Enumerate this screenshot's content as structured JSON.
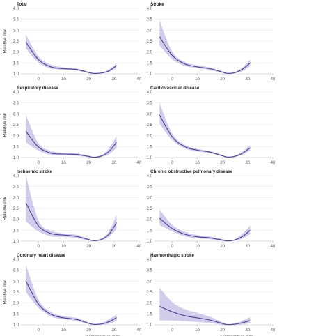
{
  "chart_data": {
    "type": "line",
    "ylabel": "Relative risk",
    "xlabel": "Temperature (°C)",
    "xlim": [
      -7,
      40
    ],
    "ylim": [
      1.0,
      4.0
    ],
    "xticks": [
      "0",
      "10",
      "20",
      "30",
      "40"
    ],
    "yticks": [
      "1.0",
      "1.5",
      "2.0",
      "2.5",
      "3.0",
      "3.5",
      "4.0"
    ],
    "grid": true,
    "line_color": "#4b3f8f",
    "band_color": "#c9c3e8",
    "panels": [
      {
        "title": "Total",
        "x": [
          -5,
          0,
          5,
          10,
          15,
          20,
          22,
          25,
          28,
          31
        ],
        "y": [
          2.45,
          1.65,
          1.32,
          1.24,
          1.2,
          1.06,
          1.02,
          1.04,
          1.14,
          1.38
        ],
        "lower": [
          2.15,
          1.52,
          1.24,
          1.19,
          1.15,
          1.03,
          1.0,
          1.02,
          1.08,
          1.27
        ],
        "upper": [
          2.8,
          1.8,
          1.41,
          1.3,
          1.25,
          1.09,
          1.04,
          1.07,
          1.2,
          1.5
        ]
      },
      {
        "title": "Stroke",
        "x": [
          -5,
          0,
          5,
          10,
          15,
          20,
          22,
          25,
          28,
          31
        ],
        "y": [
          2.7,
          1.85,
          1.46,
          1.32,
          1.24,
          1.08,
          1.02,
          1.06,
          1.22,
          1.5
        ],
        "lower": [
          2.3,
          1.67,
          1.37,
          1.26,
          1.18,
          1.04,
          1.0,
          1.03,
          1.13,
          1.35
        ],
        "upper": [
          3.45,
          2.02,
          1.55,
          1.39,
          1.3,
          1.11,
          1.05,
          1.1,
          1.3,
          1.65
        ]
      },
      {
        "title": "Respiratory disease",
        "x": [
          -5,
          0,
          5,
          10,
          15,
          20,
          22,
          25,
          28,
          31
        ],
        "y": [
          2.2,
          1.48,
          1.2,
          1.16,
          1.14,
          1.05,
          1.01,
          1.07,
          1.28,
          1.7
        ],
        "lower": [
          1.7,
          1.32,
          1.12,
          1.1,
          1.08,
          1.02,
          1.0,
          1.03,
          1.15,
          1.45
        ],
        "upper": [
          2.95,
          1.65,
          1.3,
          1.22,
          1.2,
          1.09,
          1.04,
          1.12,
          1.42,
          1.98
        ]
      },
      {
        "title": "Cardiovascular disease",
        "x": [
          -5,
          0,
          5,
          10,
          15,
          20,
          22,
          25,
          28,
          31
        ],
        "y": [
          2.95,
          1.95,
          1.5,
          1.34,
          1.25,
          1.08,
          1.02,
          1.06,
          1.2,
          1.45
        ],
        "lower": [
          2.55,
          1.8,
          1.42,
          1.28,
          1.2,
          1.05,
          1.0,
          1.03,
          1.13,
          1.33
        ],
        "upper": [
          3.5,
          2.1,
          1.58,
          1.4,
          1.3,
          1.11,
          1.04,
          1.09,
          1.27,
          1.58
        ]
      },
      {
        "title": "Ischaemic stroke",
        "x": [
          -5,
          0,
          5,
          10,
          15,
          20,
          22,
          25,
          28,
          31
        ],
        "y": [
          2.75,
          1.7,
          1.35,
          1.28,
          1.22,
          1.07,
          1.02,
          1.08,
          1.32,
          1.85
        ],
        "lower": [
          1.9,
          1.45,
          1.22,
          1.2,
          1.14,
          1.03,
          1.0,
          1.04,
          1.2,
          1.55
        ],
        "upper": [
          4.0,
          1.95,
          1.48,
          1.36,
          1.3,
          1.11,
          1.04,
          1.13,
          1.45,
          2.2
        ]
      },
      {
        "title": "Chronic obstructive pulmonary disease",
        "x": [
          -5,
          0,
          5,
          10,
          15,
          20,
          22,
          25,
          28,
          31
        ],
        "y": [
          2.05,
          1.58,
          1.32,
          1.2,
          1.15,
          1.05,
          1.01,
          1.06,
          1.22,
          1.5
        ],
        "lower": [
          1.75,
          1.45,
          1.22,
          1.13,
          1.09,
          1.02,
          1.0,
          1.03,
          1.12,
          1.32
        ],
        "upper": [
          2.45,
          1.75,
          1.43,
          1.28,
          1.22,
          1.09,
          1.03,
          1.1,
          1.35,
          1.72
        ]
      },
      {
        "title": "Coronary heart disease",
        "x": [
          -5,
          0,
          5,
          10,
          15,
          20,
          22,
          25,
          28,
          31
        ],
        "y": [
          3.0,
          1.95,
          1.48,
          1.32,
          1.25,
          1.07,
          1.02,
          1.04,
          1.14,
          1.33
        ],
        "lower": [
          2.5,
          1.78,
          1.38,
          1.25,
          1.18,
          1.03,
          1.0,
          1.01,
          1.05,
          1.18
        ],
        "upper": [
          3.75,
          2.15,
          1.58,
          1.4,
          1.32,
          1.11,
          1.05,
          1.09,
          1.25,
          1.48
        ]
      },
      {
        "title": "Haemorrhagic stroke",
        "x": [
          -5,
          0,
          5,
          10,
          15,
          20,
          22,
          25,
          28,
          31
        ],
        "y": [
          1.85,
          1.6,
          1.42,
          1.32,
          1.22,
          1.06,
          1.01,
          1.03,
          1.1,
          1.2
        ],
        "lower": [
          1.2,
          1.2,
          1.17,
          1.13,
          1.08,
          1.01,
          1.0,
          1.0,
          1.02,
          1.07
        ],
        "upper": [
          2.7,
          2.05,
          1.72,
          1.55,
          1.37,
          1.12,
          1.04,
          1.08,
          1.2,
          1.35
        ]
      }
    ]
  }
}
